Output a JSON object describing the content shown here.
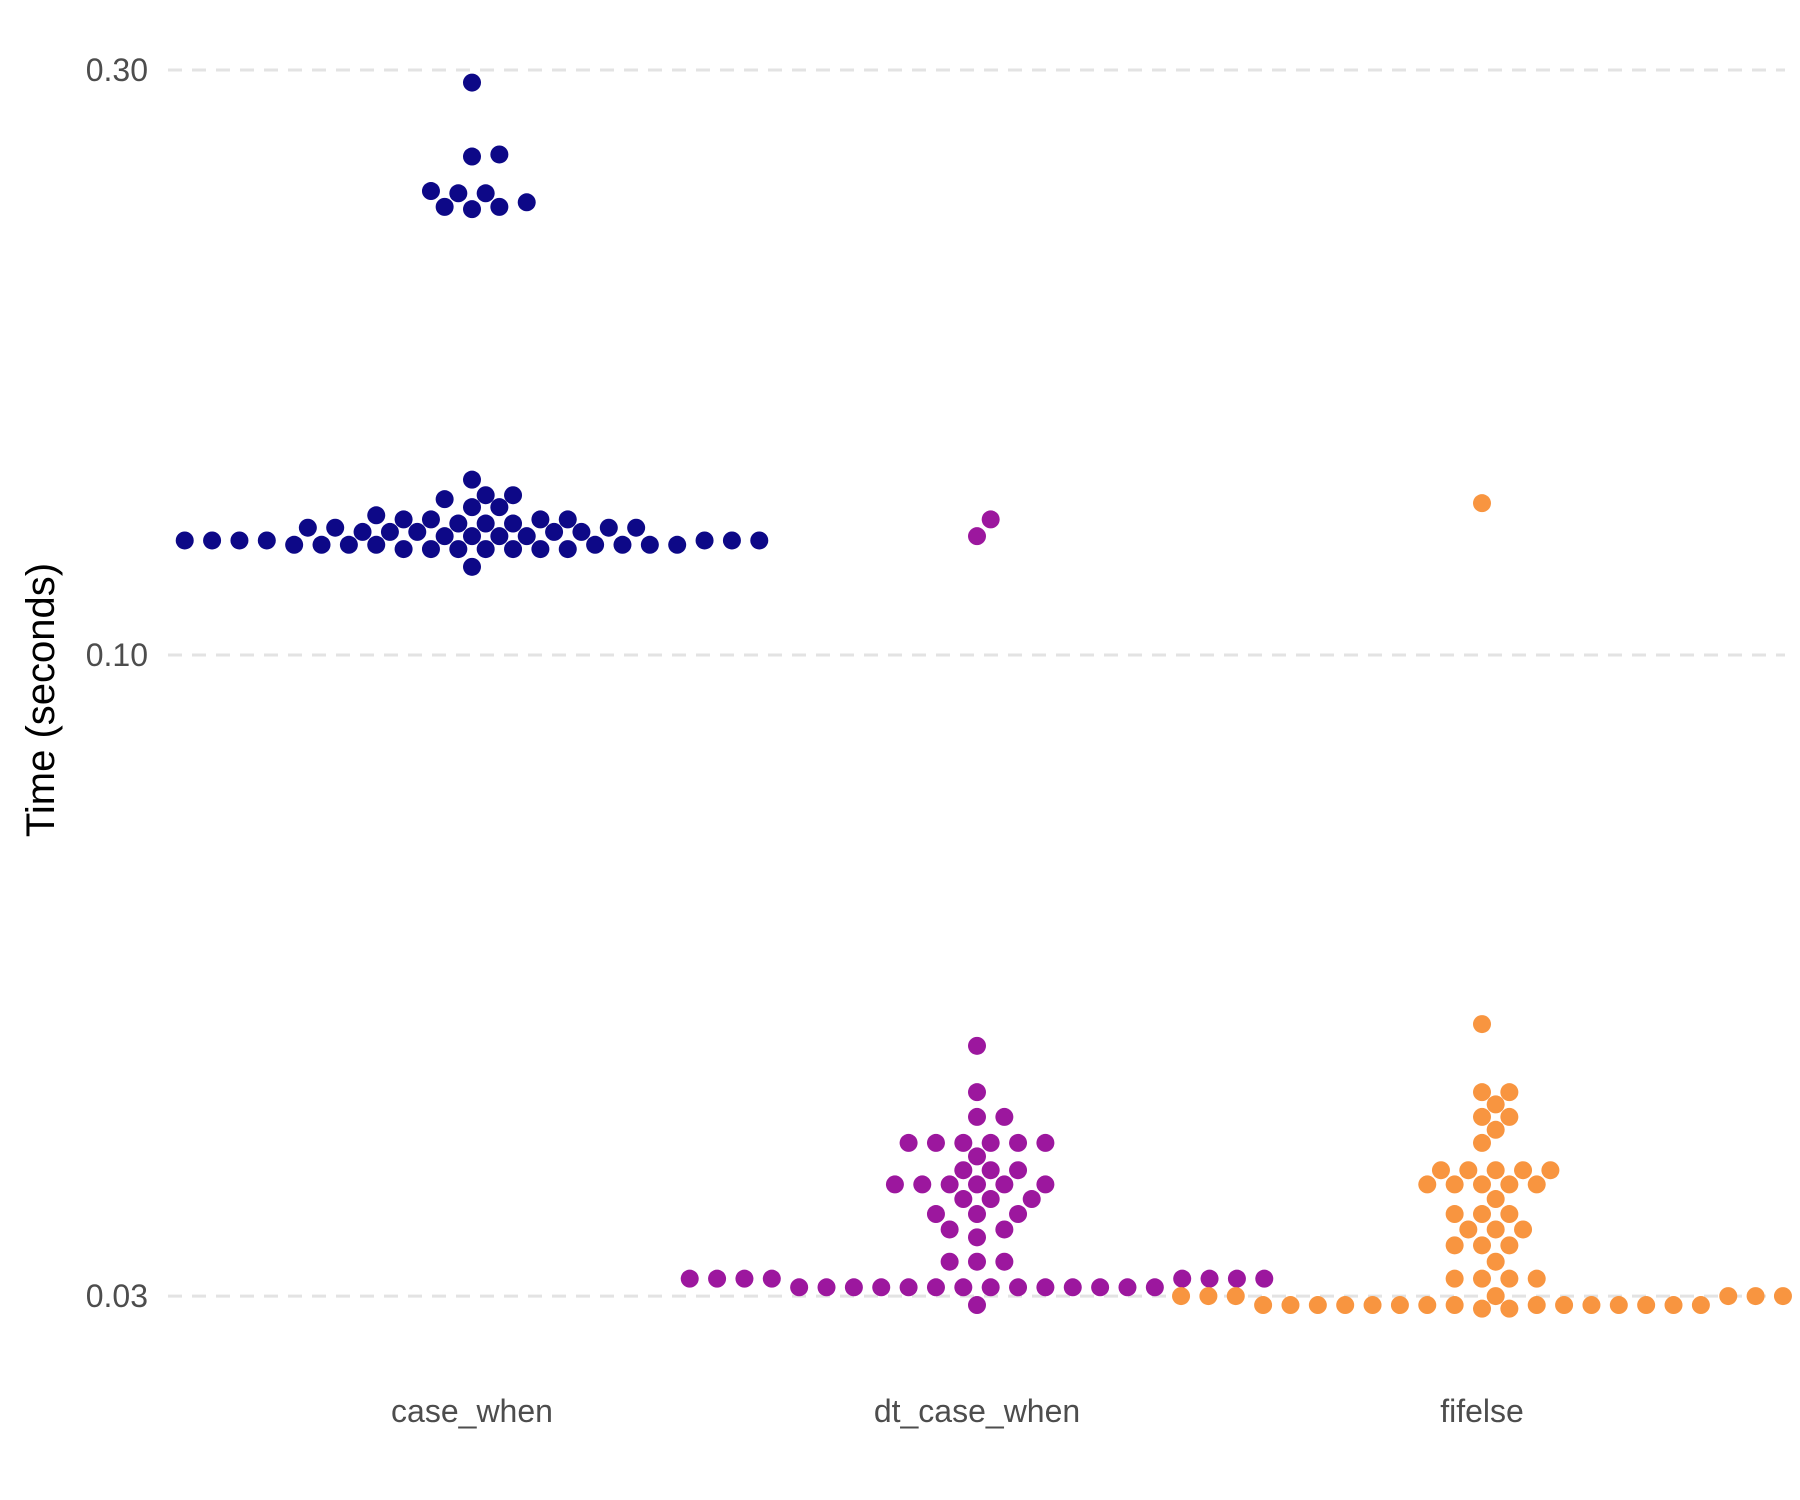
{
  "chart_data": {
    "type": "scatter",
    "subtype": "beeswarm",
    "title": "",
    "xlabel": "",
    "ylabel": "Time (seconds)",
    "y_scale": "log10",
    "ylim": [
      0.0275,
      0.315
    ],
    "yticks": [
      0.03,
      0.1,
      0.3
    ],
    "ytick_labels": [
      "0.03",
      "0.10",
      "0.30"
    ],
    "grid": "horizontal dashed major lines",
    "legend": "none",
    "categories": [
      "case_when",
      "dt_case_when",
      "fifelse"
    ],
    "series": [
      {
        "category": "case_when",
        "color": "#0d0887",
        "values": [
          0.293,
          0.255,
          0.256,
          0.238,
          0.238,
          0.239,
          0.234,
          0.232,
          0.231,
          0.232,
          0.139,
          0.135,
          0.135,
          0.134,
          0.132,
          0.132,
          0.13,
          0.129,
          0.129,
          0.129,
          0.129,
          0.128,
          0.128,
          0.128,
          0.127,
          0.127,
          0.127,
          0.127,
          0.126,
          0.126,
          0.126,
          0.126,
          0.126,
          0.125,
          0.125,
          0.125,
          0.125,
          0.124,
          0.124,
          0.124,
          0.124,
          0.124,
          0.124,
          0.124,
          0.123,
          0.123,
          0.123,
          0.123,
          0.123,
          0.123,
          0.123,
          0.123,
          0.122,
          0.122,
          0.122,
          0.122,
          0.122,
          0.122,
          0.122,
          0.118
        ]
      },
      {
        "category": "dt_case_when",
        "color": "#9c179e",
        "values": [
          0.129,
          0.125,
          0.048,
          0.044,
          0.042,
          0.042,
          0.04,
          0.04,
          0.04,
          0.04,
          0.04,
          0.04,
          0.039,
          0.038,
          0.038,
          0.038,
          0.037,
          0.037,
          0.037,
          0.037,
          0.037,
          0.037,
          0.036,
          0.036,
          0.036,
          0.035,
          0.035,
          0.035,
          0.034,
          0.034,
          0.0335,
          0.032,
          0.032,
          0.032,
          0.031,
          0.031,
          0.031,
          0.031,
          0.031,
          0.031,
          0.031,
          0.031,
          0.0305,
          0.0305,
          0.0305,
          0.0305,
          0.0305,
          0.0305,
          0.0305,
          0.0305,
          0.0305,
          0.0305,
          0.0305,
          0.0305,
          0.0305,
          0.0305,
          0.0295
        ]
      },
      {
        "category": "fifelse",
        "color": "#f89540",
        "values": [
          0.133,
          0.05,
          0.044,
          0.044,
          0.043,
          0.042,
          0.042,
          0.041,
          0.04,
          0.038,
          0.038,
          0.038,
          0.038,
          0.038,
          0.037,
          0.037,
          0.037,
          0.037,
          0.037,
          0.036,
          0.035,
          0.035,
          0.035,
          0.034,
          0.034,
          0.034,
          0.033,
          0.033,
          0.033,
          0.032,
          0.031,
          0.031,
          0.031,
          0.031,
          0.03,
          0.03,
          0.03,
          0.03,
          0.03,
          0.03,
          0.03,
          0.03,
          0.0295,
          0.0295,
          0.0295,
          0.0295,
          0.0295,
          0.0295,
          0.0295,
          0.0295,
          0.0295,
          0.0295,
          0.0295,
          0.0295,
          0.0295,
          0.0295,
          0.0295,
          0.0293,
          0.0293
        ]
      }
    ]
  }
}
